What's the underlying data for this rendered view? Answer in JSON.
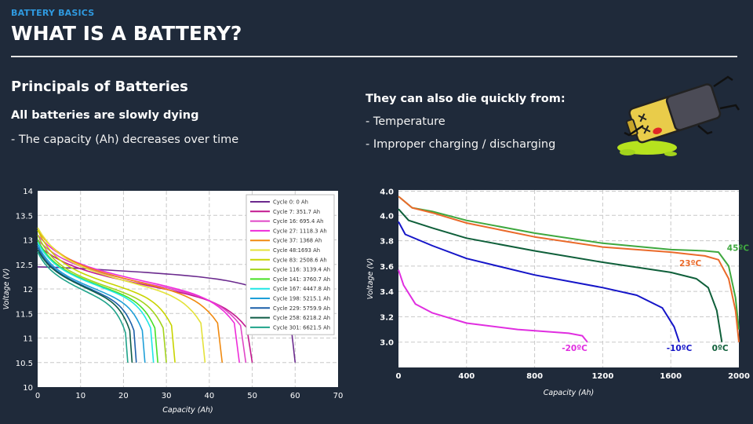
{
  "header": {
    "kicker": "BATTERY BASICS",
    "title": "WHAT IS A BATTERY?"
  },
  "left": {
    "heading": "Principals of Batteries",
    "subheading": "All batteries are slowly dying",
    "bullet": "- The capacity (Ah) decreases over time"
  },
  "right": {
    "subheading": "They can also die quickly from:",
    "bullets": [
      "- Temperature",
      "- Improper charging / discharging"
    ]
  },
  "illustration": {
    "icon": "dead-battery-icon"
  },
  "chart_data": [
    {
      "type": "line",
      "xlabel": "Capacity (Ah)",
      "ylabel": "Voltage (V)",
      "xlim": [
        0,
        70
      ],
      "ylim": [
        10,
        14
      ],
      "xticks": [
        "0",
        "10",
        "20",
        "30",
        "40",
        "50",
        "60",
        "70"
      ],
      "yticks": [
        "10",
        "10.5",
        "11",
        "11.5",
        "12",
        "12.5",
        "13",
        "13.5",
        "14"
      ],
      "grid": true,
      "legend_position": "top-right",
      "series": [
        {
          "name": "Cycle 0: 0 Ah",
          "color": "#6b2a8e",
          "end": 60,
          "start": 12.45,
          "knee": 12.45
        },
        {
          "name": "Cycle 7: 351.7 Ah",
          "color": "#c2188f",
          "end": 50,
          "start": 12.9,
          "knee": 12.5
        },
        {
          "name": "Cycle 16: 695.4 Ah",
          "color": "#e046c7",
          "end": 48.5,
          "start": 13.0,
          "knee": 12.55
        },
        {
          "name": "Cycle 27: 1118.3 Ah",
          "color": "#ee2bd9",
          "end": 47,
          "start": 13.1,
          "knee": 12.6
        },
        {
          "name": "Cycle 37: 1368 Ah",
          "color": "#f08a10",
          "end": 43,
          "start": 13.2,
          "knee": 12.6
        },
        {
          "name": "Cycle 48:1693 Ah",
          "color": "#e4e23a",
          "end": 39,
          "start": 13.25,
          "knee": 12.6
        },
        {
          "name": "Cycle 83: 2508.6 Ah",
          "color": "#c8d400",
          "end": 32,
          "start": 13.2,
          "knee": 12.55
        },
        {
          "name": "Cycle 116: 3139.4 Ah",
          "color": "#a3d31c",
          "end": 30,
          "start": 13.1,
          "knee": 12.5
        },
        {
          "name": "Cycle 141: 3760.7 Ah",
          "color": "#46e024",
          "end": 28,
          "start": 13.0,
          "knee": 12.5
        },
        {
          "name": "Cycle 167: 4447.8 Ah",
          "color": "#20e6e6",
          "end": 27,
          "start": 12.95,
          "knee": 12.5
        },
        {
          "name": "Cycle 198: 5215.1 Ah",
          "color": "#1e9fd8",
          "end": 25,
          "start": 12.9,
          "knee": 12.45
        },
        {
          "name": "Cycle 229: 5759.9 Ah",
          "color": "#1c5fa8",
          "end": 23,
          "start": 12.85,
          "knee": 12.45
        },
        {
          "name": "Cycle 258: 6218.2 Ah",
          "color": "#0e5c46",
          "end": 22,
          "start": 12.8,
          "knee": 12.45
        },
        {
          "name": "Cycle 301: 6621.5 Ah",
          "color": "#1fa38a",
          "end": 21,
          "start": 12.75,
          "knee": 12.4
        }
      ]
    },
    {
      "type": "line",
      "xlabel": "Capacity (Ah)",
      "ylabel": "Voltage (V)",
      "xlim": [
        0,
        2000
      ],
      "ylim": [
        2.8,
        4.2
      ],
      "xticks": [
        "0",
        "400",
        "800",
        "1200",
        "1600",
        "2000"
      ],
      "yticks": [
        "3.0",
        "3.2",
        "3.4",
        "3.6",
        "3.8",
        "4.0",
        "4.0"
      ],
      "grid": true,
      "series": [
        {
          "name": "45ºC",
          "color": "#3fa83f",
          "points": [
            [
              0,
              4.15
            ],
            [
              80,
              4.06
            ],
            [
              200,
              4.03
            ],
            [
              400,
              3.96
            ],
            [
              800,
              3.86
            ],
            [
              1200,
              3.78
            ],
            [
              1600,
              3.73
            ],
            [
              1800,
              3.72
            ],
            [
              1880,
              3.71
            ],
            [
              1940,
              3.6
            ],
            [
              1980,
              3.35
            ],
            [
              2000,
              3.1
            ]
          ]
        },
        {
          "name": "23ºC",
          "color": "#ea6a2a",
          "points": [
            [
              0,
              4.15
            ],
            [
              80,
              4.06
            ],
            [
              200,
              4.02
            ],
            [
              400,
              3.94
            ],
            [
              800,
              3.83
            ],
            [
              1200,
              3.75
            ],
            [
              1600,
              3.71
            ],
            [
              1800,
              3.68
            ],
            [
              1880,
              3.65
            ],
            [
              1940,
              3.5
            ],
            [
              1980,
              3.25
            ],
            [
              2000,
              3.0
            ]
          ]
        },
        {
          "name": "0ºC",
          "color": "#0f5f3a",
          "points": [
            [
              0,
              4.05
            ],
            [
              60,
              3.96
            ],
            [
              200,
              3.9
            ],
            [
              400,
              3.82
            ],
            [
              800,
              3.72
            ],
            [
              1200,
              3.63
            ],
            [
              1600,
              3.55
            ],
            [
              1750,
              3.5
            ],
            [
              1820,
              3.43
            ],
            [
              1870,
              3.25
            ],
            [
              1900,
              3.0
            ]
          ]
        },
        {
          "name": "-10ºC",
          "color": "#1515c8",
          "points": [
            [
              0,
              3.95
            ],
            [
              40,
              3.85
            ],
            [
              200,
              3.76
            ],
            [
              400,
              3.66
            ],
            [
              800,
              3.53
            ],
            [
              1200,
              3.43
            ],
            [
              1400,
              3.37
            ],
            [
              1550,
              3.27
            ],
            [
              1620,
              3.12
            ],
            [
              1650,
              3.0
            ]
          ]
        },
        {
          "name": "-20ºC",
          "color": "#e02ee0",
          "points": [
            [
              0,
              3.57
            ],
            [
              30,
              3.45
            ],
            [
              100,
              3.3
            ],
            [
              200,
              3.23
            ],
            [
              400,
              3.15
            ],
            [
              700,
              3.1
            ],
            [
              1000,
              3.07
            ],
            [
              1080,
              3.05
            ],
            [
              1110,
              3.0
            ]
          ]
        }
      ]
    }
  ]
}
